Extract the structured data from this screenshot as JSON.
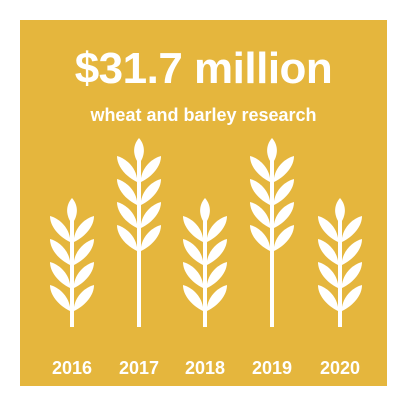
{
  "headline": {
    "amount": "$31.7 million",
    "subtitle": "wheat and barley research"
  },
  "stalk_icons": [
    "wheat-icon",
    "wheat-icon",
    "wheat-icon",
    "wheat-icon",
    "wheat-icon"
  ],
  "years": [
    "2016",
    "2017",
    "2018",
    "2019",
    "2020"
  ],
  "colors": {
    "background": "#e5b63d",
    "foreground": "#ffffff"
  }
}
